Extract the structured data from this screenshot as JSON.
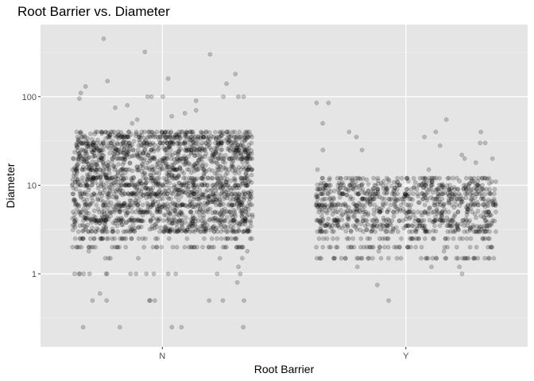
{
  "chart_data": {
    "type": "scatter",
    "jitter": true,
    "title": "Root Barrier vs. Diameter",
    "xlabel": "Root Barrier",
    "ylabel": "Diameter",
    "y_scale": "log10",
    "ylim": [
      0.15,
      650
    ],
    "categories": [
      "N",
      "Y"
    ],
    "y_ticks": [
      1,
      10,
      100
    ],
    "y_tick_labels": [
      "1",
      "10",
      "100"
    ],
    "grid": true,
    "panel_background": "#E5E5E5",
    "point_color": "#000000",
    "point_alpha": 0.2,
    "groups": [
      {
        "category": "N",
        "dense_range": [
          3,
          40
        ],
        "levels": [
          2,
          2.5,
          3,
          4,
          5,
          6,
          8,
          10,
          12,
          15,
          20,
          25,
          30,
          35,
          40
        ],
        "sparse_points": [
          0.25,
          0.25,
          0.25,
          0.25,
          0.25,
          0.5,
          0.5,
          0.5,
          0.5,
          0.5,
          0.5,
          0.5,
          0.5,
          0.6,
          0.8,
          1,
          1,
          1,
          1,
          1,
          1,
          1,
          1,
          1,
          1,
          1,
          1,
          1,
          1,
          1,
          1.2,
          1.5,
          1.5,
          1.5,
          1.5,
          1.5,
          1.5,
          1.8,
          1.8,
          50,
          55,
          60,
          65,
          70,
          75,
          80,
          90,
          95,
          100,
          100,
          100,
          100,
          100,
          100,
          110,
          130,
          140,
          150,
          160,
          180,
          300,
          320,
          450
        ]
      },
      {
        "category": "Y",
        "dense_range": [
          3,
          12
        ],
        "levels": [
          1.5,
          2,
          2.5,
          3,
          3.5,
          4,
          5,
          6,
          7,
          8,
          9,
          10,
          12
        ],
        "sparse_points": [
          0.5,
          0.75,
          1,
          1.2,
          1.2,
          1.2,
          1.5,
          1.5,
          1.5,
          1.5,
          1.8,
          1.8,
          15,
          15,
          18,
          20,
          20,
          22,
          25,
          25,
          28,
          30,
          30,
          35,
          35,
          40,
          40,
          40,
          50,
          55,
          85,
          85
        ]
      }
    ]
  }
}
